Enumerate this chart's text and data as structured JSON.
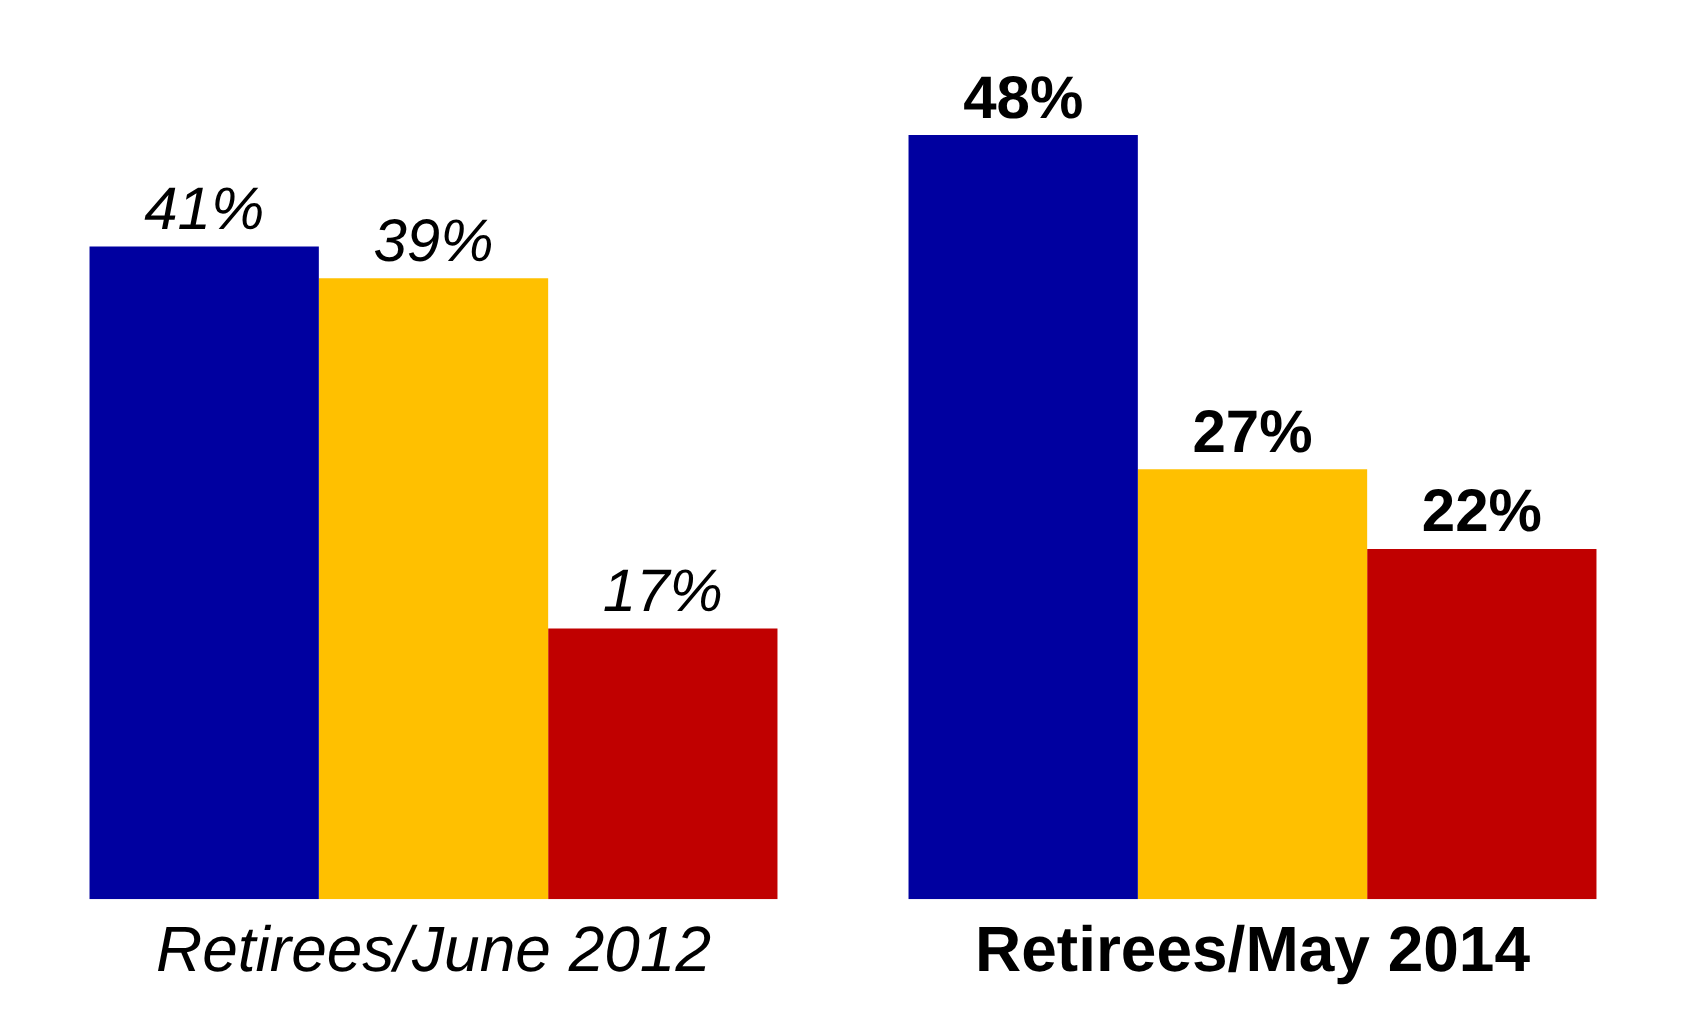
{
  "chart_data": {
    "type": "bar",
    "categories": [
      "Retirees/June 2012",
      "Retirees/May 2014"
    ],
    "series": [
      {
        "color": "#0000a0",
        "values": [
          41,
          48
        ],
        "value_labels": [
          "41%",
          "48%"
        ]
      },
      {
        "color": "#ffc000",
        "values": [
          39,
          27
        ],
        "value_labels": [
          "39%",
          "27%"
        ]
      },
      {
        "color": "#c00000",
        "values": [
          17,
          22
        ],
        "value_labels": [
          "17%",
          "22%"
        ]
      }
    ],
    "grid": false,
    "legend": false
  }
}
